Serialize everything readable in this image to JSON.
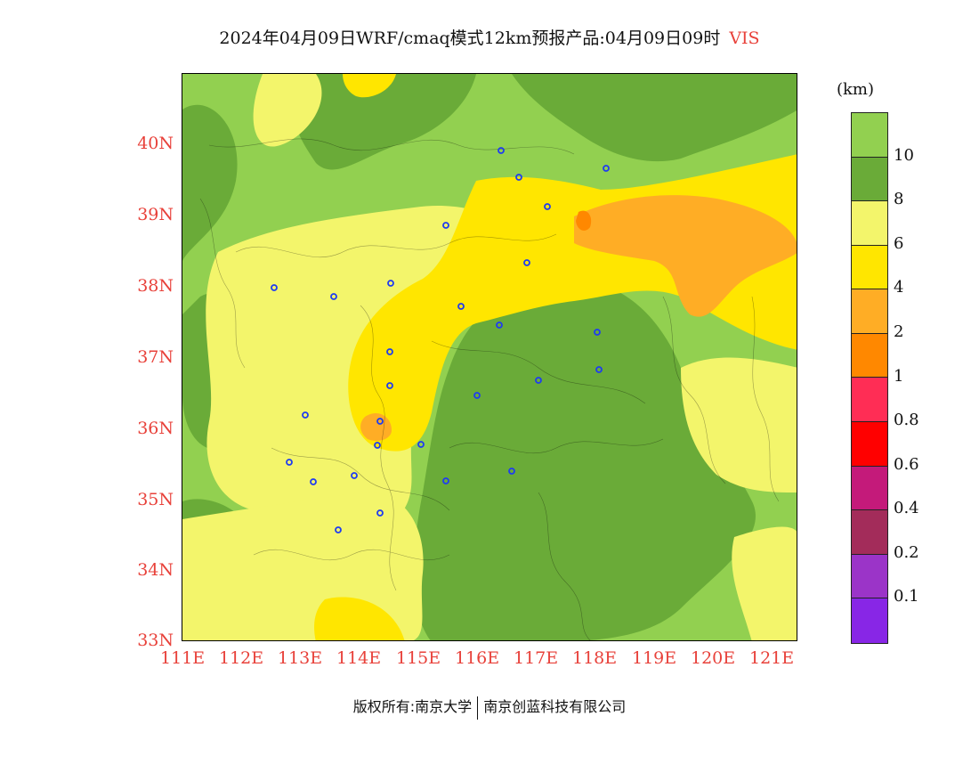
{
  "title": "2024年04月09日WRF/cmaq模式12km预报产品:04月09日09时",
  "variable": "VIS",
  "unit": "(km)",
  "lat_labels": [
    "40N",
    "39N",
    "38N",
    "37N",
    "36N",
    "35N",
    "34N",
    "33N"
  ],
  "lon_labels": [
    "111E",
    "112E",
    "113E",
    "114E",
    "115E",
    "116E",
    "117E",
    "118E",
    "119E",
    "120E",
    "121E"
  ],
  "colorbar": {
    "labels": [
      "10",
      "8",
      "6",
      "4",
      "2",
      "1",
      "0.8",
      "0.6",
      "0.4",
      "0.2",
      "0.1"
    ],
    "colors": [
      "#92d050",
      "#6aab38",
      "#f3f56b",
      "#ffe600",
      "#ffad25",
      "#ff8800",
      "#ff2d55",
      "#ff0000",
      "#c41a7a",
      "#a32c5a",
      "#9b34c8",
      "#8826e6"
    ]
  },
  "footer": {
    "left": "版权所有:南京大学",
    "right": "南京创蓝科技有限公司"
  },
  "chart_data": {
    "type": "heatmap",
    "title": "2024年04月09日WRF/cmaq模式12km预报产品:04月09日09时 VIS",
    "xlim": [
      111,
      121.4
    ],
    "ylim": [
      33,
      41
    ],
    "x_ticks": [
      "111E",
      "112E",
      "113E",
      "114E",
      "115E",
      "116E",
      "117E",
      "118E",
      "119E",
      "120E",
      "121E"
    ],
    "y_ticks": [
      "40N",
      "39N",
      "38N",
      "37N",
      "36N",
      "35N",
      "34N",
      "33N"
    ],
    "legend": "colorbar-right",
    "levels": [
      0.1,
      0.2,
      0.4,
      0.6,
      0.8,
      1,
      2,
      4,
      6,
      8,
      10
    ]
  },
  "palette": {
    "green_light": "#92d050",
    "green_dark": "#6aab38",
    "yellow_light": "#f3f56b",
    "yellow": "#ffe600",
    "orange_light": "#ffad25",
    "orange": "#ff8800",
    "station": "#1f3cf0"
  }
}
